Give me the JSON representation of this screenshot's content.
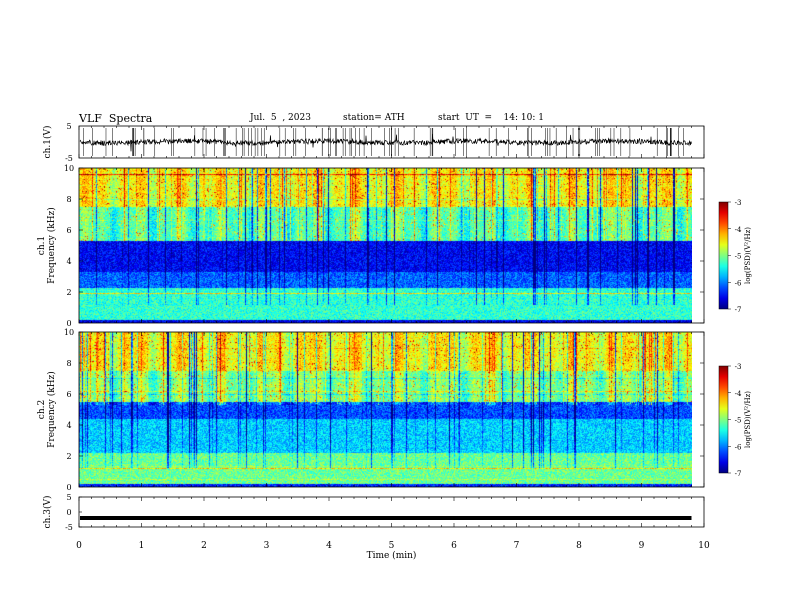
{
  "header": {
    "title": "VLF  Spectra",
    "date": "Jul.  5  , 2023",
    "station": "station= ATH",
    "start": "start  UT  =    14: 10: 1"
  },
  "chart_data": [
    {
      "type": "line",
      "id": "ch1",
      "ylabel": "ch.1(V)",
      "xlim": [
        0,
        10
      ],
      "ylim": [
        -5,
        5
      ],
      "yticks": [
        "5",
        "-5"
      ],
      "baseline": 0,
      "amplitude": 1.2,
      "data_end_min": 9.8
    },
    {
      "type": "heatmap",
      "id": "ch1spec",
      "ylabel": "ch.1\nFrequency  (kHz)",
      "xlim": [
        0,
        10
      ],
      "ylim": [
        0,
        10
      ],
      "yticks": [
        "0",
        "2",
        "4",
        "6",
        "8",
        "10"
      ],
      "colorbar": {
        "label": "log(PSD)(V²/Hz)",
        "range": [
          -7,
          -3
        ],
        "ticks": [
          "-3",
          "-4",
          "-5",
          "-6",
          "-7"
        ]
      },
      "data_end_min": 9.8
    },
    {
      "type": "heatmap",
      "id": "ch2spec",
      "ylabel": "ch.2\nFrequency  (kHz)",
      "xlim": [
        0,
        10
      ],
      "ylim": [
        0,
        10
      ],
      "yticks": [
        "0",
        "2",
        "4",
        "6",
        "8",
        "10"
      ],
      "colorbar": {
        "label": "log(PSD)(V²/Hz)",
        "range": [
          -7,
          -3
        ],
        "ticks": [
          "-3",
          "-4",
          "-5",
          "-6",
          "-7"
        ]
      },
      "data_end_min": 9.8
    },
    {
      "type": "line",
      "id": "ch3",
      "ylabel": "ch.3(V)",
      "xlim": [
        0,
        10
      ],
      "ylim": [
        -5,
        5
      ],
      "yticks": [
        "5",
        "0",
        "-5"
      ],
      "baseline": -2,
      "amplitude": 0.05,
      "data_end_min": 9.8
    }
  ],
  "xaxis": {
    "label": "Time  (min)",
    "ticks": [
      "0",
      "1",
      "2",
      "3",
      "4",
      "5",
      "6",
      "7",
      "8",
      "9",
      "10"
    ]
  }
}
